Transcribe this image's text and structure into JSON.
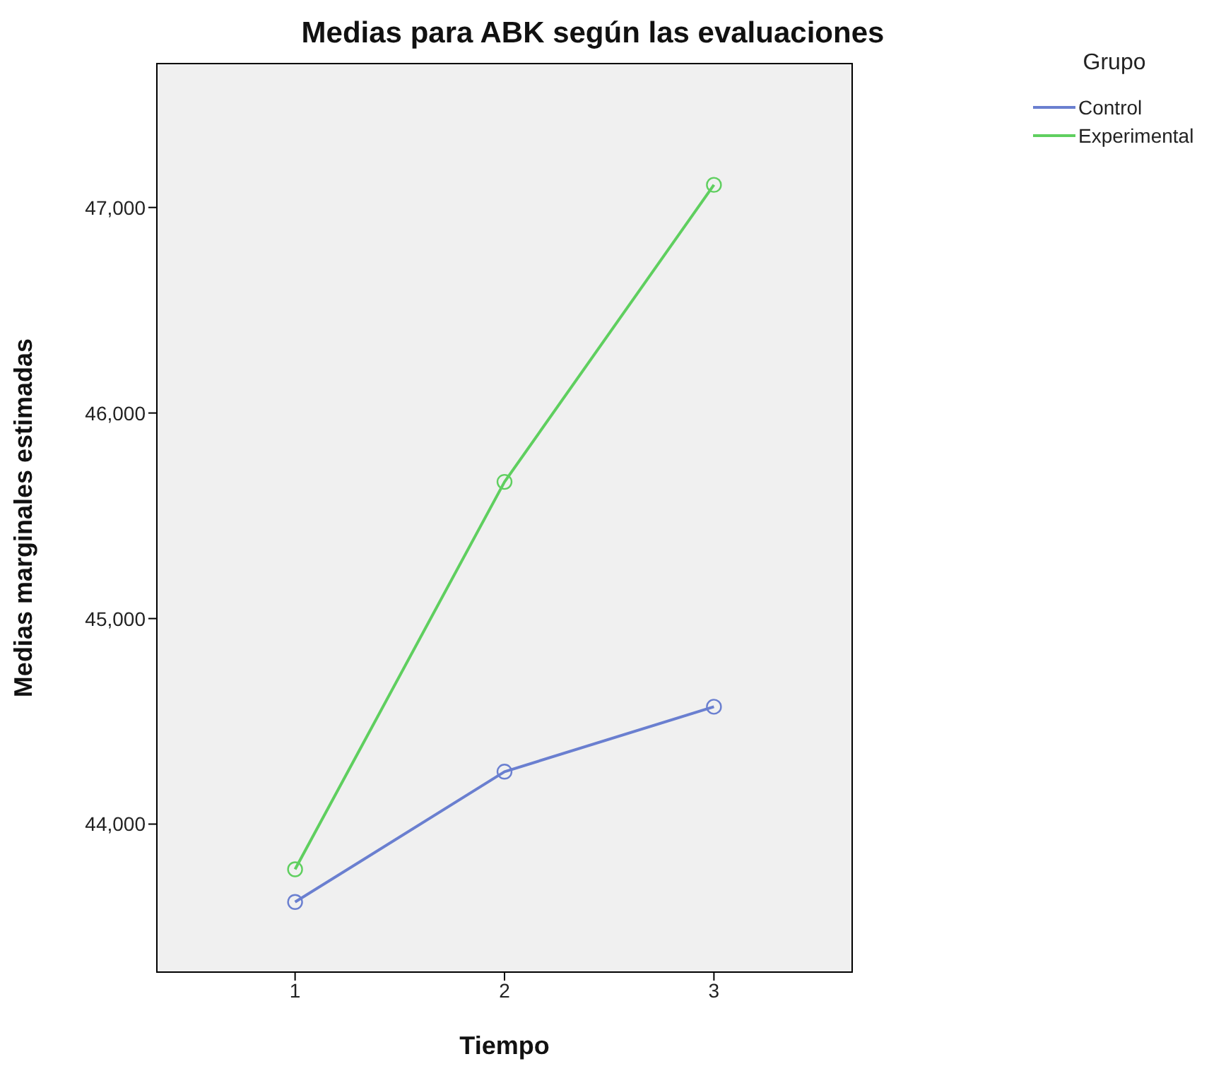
{
  "chart_data": {
    "type": "line",
    "title": "Medias para ABK según las evaluaciones",
    "xlabel": "Tiempo",
    "ylabel": "Medias marginales estimadas",
    "legend_title": "Grupo",
    "x": [
      1,
      2,
      3
    ],
    "series": [
      {
        "name": "Control",
        "color": "#6a7fd0",
        "values": [
          43621,
          44255,
          44571
        ]
      },
      {
        "name": "Experimental",
        "color": "#5fcf5f",
        "values": [
          43780,
          45665,
          47110
        ]
      }
    ],
    "xlim": [
      0.34,
      3.66
    ],
    "xticks": [
      1,
      2,
      3
    ],
    "ylim": [
      43280,
      47700
    ],
    "yticks": [
      {
        "value": 44000,
        "label": "44,000"
      },
      {
        "value": 45000,
        "label": "45,000"
      },
      {
        "value": 46000,
        "label": "46,000"
      },
      {
        "value": 47000,
        "label": "47,000"
      }
    ],
    "marker": "circle",
    "line_style": "solid",
    "legend": "top right"
  }
}
